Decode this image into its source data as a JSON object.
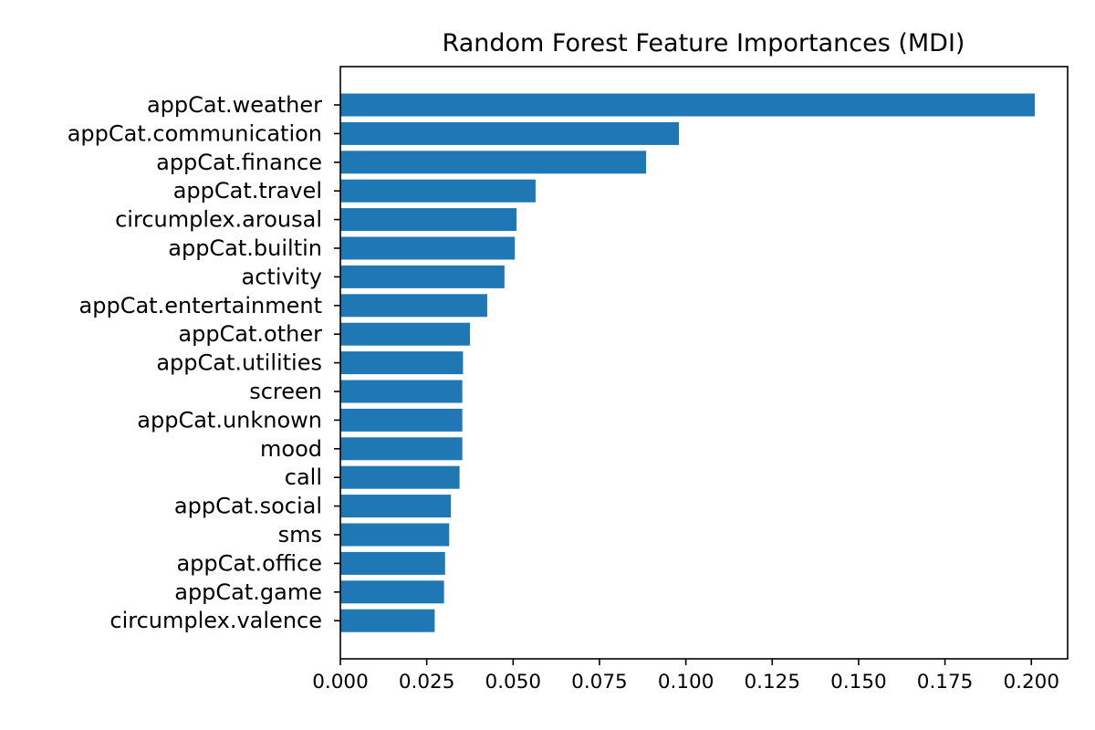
{
  "chart_data": {
    "type": "bar",
    "orientation": "horizontal",
    "title": "Random Forest Feature Importances (MDI)",
    "xlabel": "",
    "ylabel": "",
    "categories": [
      "appCat.weather",
      "appCat.communication",
      "appCat.finance",
      "appCat.travel",
      "circumplex.arousal",
      "appCat.builtin",
      "activity",
      "appCat.entertainment",
      "appCat.other",
      "appCat.utilities",
      "screen",
      "appCat.unknown",
      "mood",
      "call",
      "appCat.social",
      "sms",
      "appCat.office",
      "appCat.game",
      "circumplex.valence"
    ],
    "values": [
      0.201,
      0.098,
      0.0885,
      0.0565,
      0.051,
      0.0505,
      0.0475,
      0.0425,
      0.0375,
      0.0355,
      0.0353,
      0.0353,
      0.0353,
      0.0345,
      0.032,
      0.0315,
      0.0303,
      0.03,
      0.0273
    ],
    "xlim": [
      0,
      0.2105
    ],
    "xticks": [
      "0.000",
      "0.025",
      "0.050",
      "0.075",
      "0.100",
      "0.125",
      "0.150",
      "0.175",
      "0.200"
    ],
    "bar_color": "#1f77b4",
    "grid": false
  }
}
